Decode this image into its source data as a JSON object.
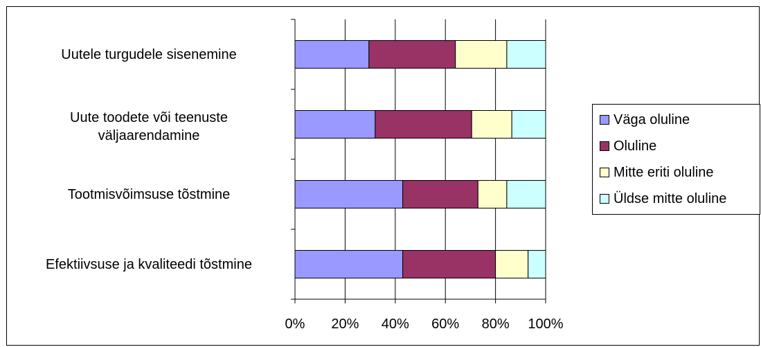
{
  "chart_data": {
    "type": "bar",
    "orientation": "horizontal",
    "stacked": "percent",
    "categories": [
      "Uutele turgudele sisenemine",
      "Uute toodete või teenuste väljaarendamine",
      "Tootmisvõimsuse tõstmine",
      "Efektiivsuse ja kvaliteedi tõstmine"
    ],
    "category_lines": [
      [
        "Uutele turgudele sisenemine"
      ],
      [
        "Uute toodete või teenuste",
        "väljaarendamine"
      ],
      [
        "Tootmisvõimsuse tõstmine"
      ],
      [
        "Efektiivsuse ja kvaliteedi tõstmine"
      ]
    ],
    "series": [
      {
        "name": "Väga oluline",
        "color": "#9999ff",
        "values": [
          29.5,
          32,
          43,
          43
        ]
      },
      {
        "name": "Oluline",
        "color": "#993366",
        "values": [
          34.5,
          38.5,
          30,
          37
        ]
      },
      {
        "name": "Mitte eriti oluline",
        "color": "#ffffcc",
        "values": [
          20.5,
          16,
          11.5,
          13
        ]
      },
      {
        "name": "Üldse mitte oluline",
        "color": "#ccffff",
        "values": [
          15.5,
          13.5,
          15.5,
          7
        ]
      }
    ],
    "x_ticks": [
      "0%",
      "20%",
      "40%",
      "60%",
      "80%",
      "100%"
    ],
    "xlim": [
      0,
      100
    ],
    "grid": true,
    "legend_position": "right"
  }
}
